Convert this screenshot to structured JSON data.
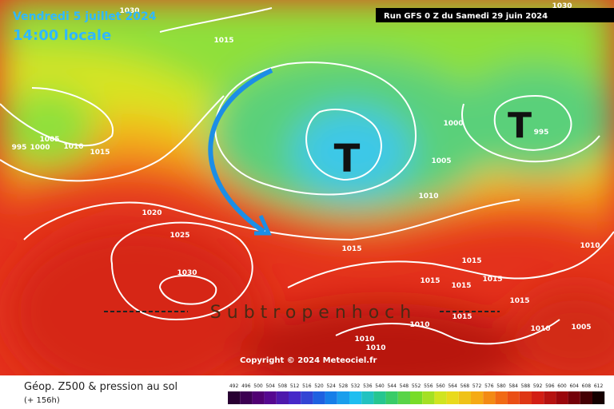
{
  "header": {
    "date": "Vendredi 5 juillet 2024",
    "time": "14:00 locale",
    "run": "Run GFS 0 Z du Samedi 29 juin 2024"
  },
  "isobars": [
    1030,
    1030,
    1015,
    995,
    1000,
    1005,
    1010,
    1015,
    1020,
    1025,
    1030,
    1000,
    995,
    1005,
    1010,
    1015,
    1015,
    1015,
    1015,
    1015,
    1015,
    1015,
    1010,
    1010,
    1010,
    1010,
    1010,
    1005
  ],
  "lows": [
    "T",
    "T"
  ],
  "annotation": "Subtropenhoch",
  "copyright": "Copyright © 2024 Meteociel.fr",
  "legend": {
    "title": "Géop. Z500 & pression au sol",
    "lead": "(+ 156h)",
    "scale": [
      492,
      496,
      500,
      504,
      508,
      512,
      516,
      520,
      524,
      528,
      532,
      536,
      540,
      544,
      548,
      552,
      556,
      560,
      564,
      568,
      572,
      576,
      580,
      584,
      588,
      592,
      596,
      600,
      604,
      608,
      612
    ]
  }
}
